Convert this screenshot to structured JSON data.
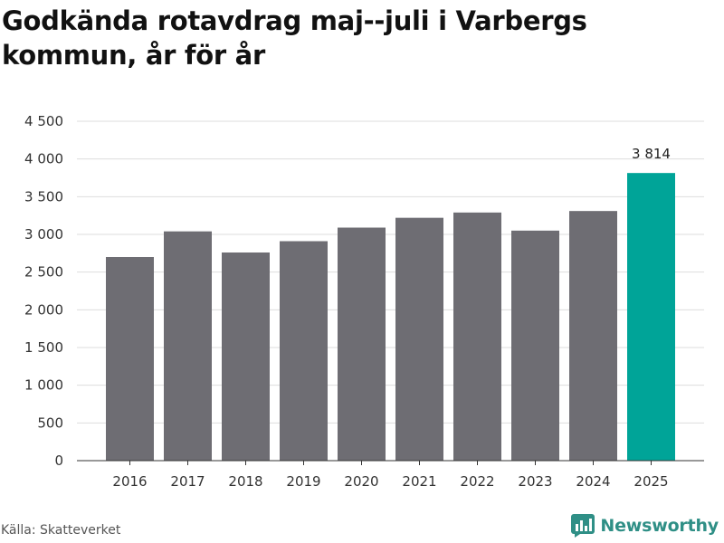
{
  "chart_data": {
    "type": "bar",
    "title": "Godkända rotavdrag maj--juli i Varbergs kommun, år för år",
    "xlabel": "",
    "ylabel": "",
    "categories": [
      "2016",
      "2017",
      "2018",
      "2019",
      "2020",
      "2021",
      "2022",
      "2023",
      "2024",
      "2025"
    ],
    "values": [
      2700,
      3040,
      2760,
      2910,
      3090,
      3220,
      3290,
      3050,
      3310,
      3814
    ],
    "ylim": [
      0,
      4500
    ],
    "yticks": [
      0,
      500,
      1000,
      1500,
      2000,
      2500,
      3000,
      3500,
      4000,
      4500
    ],
    "ytick_labels": [
      "0",
      "500",
      "1 000",
      "1 500",
      "2 000",
      "2 500",
      "3 000",
      "3 500",
      "4 000",
      "4 500"
    ],
    "highlight_index": 9,
    "highlight_label": "3 814",
    "grid": true,
    "legend": "none",
    "colors": {
      "bar": "#6e6d73",
      "highlight": "#00a498",
      "grid": "#dddddd",
      "axis": "#333333"
    }
  },
  "footer": {
    "source": "Källa: Skatteverket",
    "brand": "Newsworthy",
    "brand_icon": "newsworthy-logo-icon"
  }
}
